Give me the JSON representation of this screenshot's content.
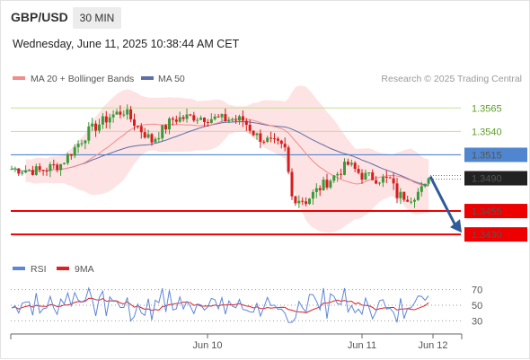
{
  "header": {
    "pair": "GBP/USD",
    "interval": "30 MIN",
    "datetime": "Wednesday, June 11, 2025 10:38:44 AM CET"
  },
  "legend": {
    "ma20_label": "MA 20 + Bollinger Bands",
    "ma50_label": "MA 50",
    "rsi_label": "RSI",
    "rsi_ma_label": "9MA",
    "credit": "Research © 2025 Trading Central"
  },
  "colors": {
    "up": "#3a9a3a",
    "down": "#d81d1d",
    "ma20": "#f08c8c",
    "bollinger_fill": "#fde3e3",
    "ma50": "#5d6ea8",
    "pivot_blue": "#4f86cf",
    "support_red": "#ee0000",
    "resistance_green": "#c4df97",
    "rsi": "#5d86d8",
    "rsi_ma": "#e02020",
    "arrow": "#2e5c9a"
  },
  "chart_data": {
    "type": "candlestick",
    "x_ticks": [
      "Jun 10",
      "Jun 11",
      "Jun 12"
    ],
    "y_range": [
      1.341,
      1.3595
    ],
    "levels": [
      {
        "label": "1.3565",
        "value": 1.3565,
        "kind": "resistance"
      },
      {
        "label": "1.3540",
        "value": 1.354,
        "kind": "resistance"
      },
      {
        "label": "1.3515",
        "value": 1.3515,
        "kind": "pivot"
      },
      {
        "label": "1.3490",
        "value": 1.349,
        "kind": "last"
      },
      {
        "label": "1.3455",
        "value": 1.3455,
        "kind": "support"
      },
      {
        "label": "1.3430",
        "value": 1.343,
        "kind": "support"
      }
    ],
    "forecast_arrow": {
      "from": 1.349,
      "to": 1.343
    },
    "rsi": {
      "ticks": [
        70,
        50,
        30
      ],
      "y_range": [
        20,
        80
      ]
    }
  }
}
